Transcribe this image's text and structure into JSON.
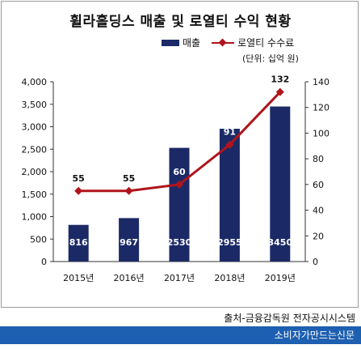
{
  "chart_data": {
    "type": "bar",
    "title": "휠라홀딩스 매출 및 로열티 수익 현황",
    "unit_note": "(단위: 십억 원)",
    "categories": [
      "2015년",
      "2016년",
      "2017년",
      "2018년",
      "2019년"
    ],
    "series": [
      {
        "name": "매출",
        "type": "bar",
        "axis": "left",
        "values": [
          816,
          967,
          2530,
          2955,
          3450
        ],
        "color": "#1b2a66"
      },
      {
        "name": "로열티 수수료",
        "type": "line",
        "axis": "right",
        "values": [
          55,
          55,
          60,
          91,
          132
        ],
        "color": "#b0141b"
      }
    ],
    "y_left": {
      "ylim": [
        0,
        4000
      ],
      "ticks": [
        0,
        500,
        1000,
        1500,
        2000,
        2500,
        3000,
        3500,
        4000
      ],
      "tick_labels": [
        "0",
        "500",
        "1,000",
        "1,500",
        "2,000",
        "2,500",
        "3,000",
        "3,500",
        "4,000"
      ]
    },
    "y_right": {
      "ylim": [
        0,
        140
      ],
      "ticks": [
        0,
        20,
        40,
        60,
        80,
        100,
        120,
        140
      ],
      "tick_labels": [
        "0",
        "20",
        "40",
        "60",
        "80",
        "100",
        "120",
        "140"
      ]
    },
    "grid": false,
    "legend_position": "top-right"
  },
  "source": "출처-금융감독원 전자공시시스템",
  "footer": "소비자가만드는신문"
}
